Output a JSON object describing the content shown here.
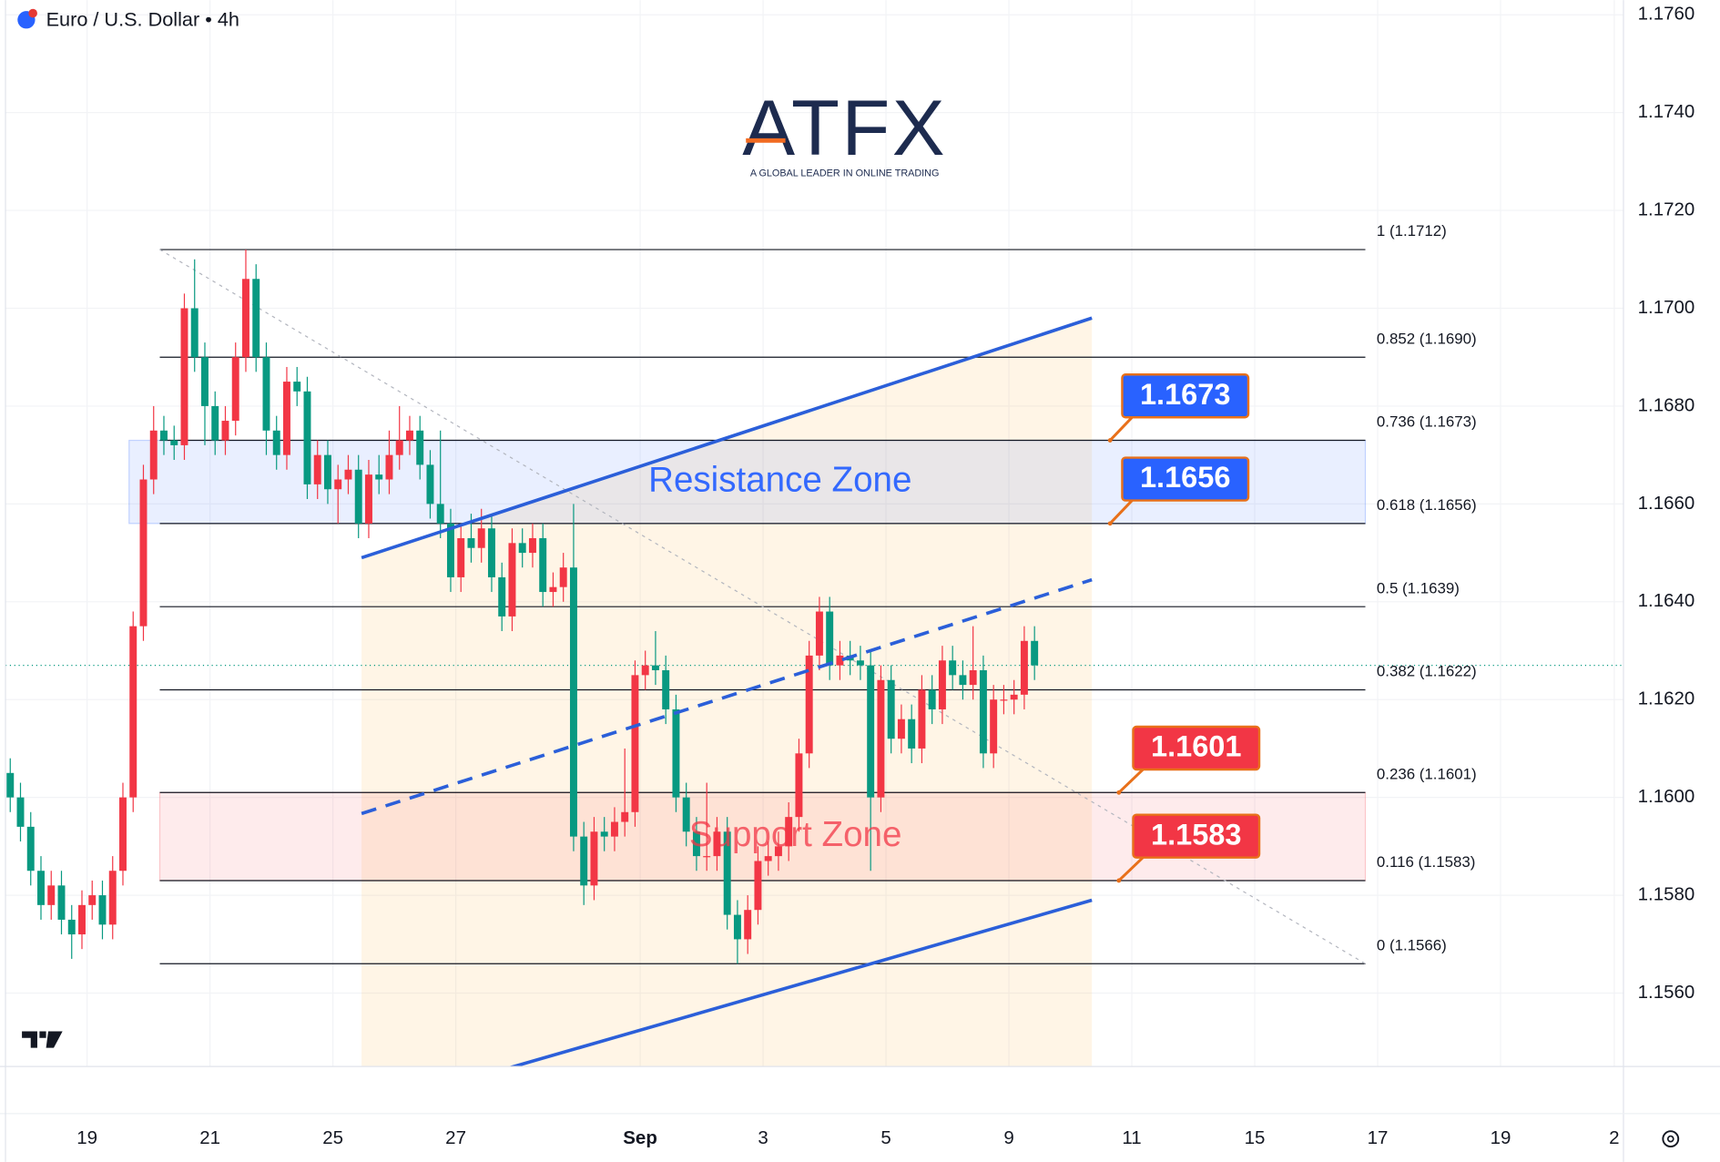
{
  "chart_data": {
    "type": "candlestick",
    "title": "Euro / U.S. Dollar • 4h",
    "up_color": "#f23645",
    "down_color": "#089981",
    "grid": true,
    "xlim": [
      -1,
      157.5
    ],
    "ylim": [
      1.1545,
      1.1763
    ],
    "xticks": [
      {
        "value": 7.5,
        "label": "19"
      },
      {
        "value": 19.5,
        "label": "21"
      },
      {
        "value": 31.5,
        "label": "25"
      },
      {
        "value": 43.5,
        "label": "27"
      },
      {
        "value": 61.5,
        "label": "Sep"
      },
      {
        "value": 73.5,
        "label": "3"
      },
      {
        "value": 85.5,
        "label": "5"
      },
      {
        "value": 97.5,
        "label": "9"
      },
      {
        "value": 109.5,
        "label": "11"
      },
      {
        "value": 121.5,
        "label": "15"
      },
      {
        "value": 133.5,
        "label": "17"
      },
      {
        "value": 145.5,
        "label": "19"
      },
      {
        "value": 156.6,
        "label": "2"
      }
    ],
    "yticks": [
      {
        "value": 1.176,
        "label": "1.1760"
      },
      {
        "value": 1.174,
        "label": "1.1740"
      },
      {
        "value": 1.172,
        "label": "1.1720"
      },
      {
        "value": 1.17,
        "label": "1.1700"
      },
      {
        "value": 1.168,
        "label": "1.1680"
      },
      {
        "value": 1.166,
        "label": "1.1660"
      },
      {
        "value": 1.164,
        "label": "1.1640"
      },
      {
        "value": 1.162,
        "label": "1.1620"
      },
      {
        "value": 1.16,
        "label": "1.1600"
      },
      {
        "value": 1.158,
        "label": "1.1580"
      },
      {
        "value": 1.156,
        "label": "1.1560"
      }
    ],
    "open": [
      1.1605,
      1.16,
      1.1594,
      1.1585,
      1.1578,
      1.1582,
      1.1575,
      1.1572,
      1.1578,
      1.158,
      1.1574,
      1.1585,
      1.16,
      1.1635,
      1.1665,
      1.1675,
      1.1673,
      1.1672,
      1.17,
      1.169,
      1.168,
      1.1673,
      1.1677,
      1.169,
      1.1706,
      1.169,
      1.1675,
      1.167,
      1.1685,
      1.1683,
      1.1664,
      1.167,
      1.1663,
      1.1665,
      1.1667,
      1.1656,
      1.1666,
      1.1665,
      1.167,
      1.1673,
      1.1675,
      1.1668,
      1.166,
      1.1656,
      1.1645,
      1.1653,
      1.1651,
      1.1655,
      1.1645,
      1.1637,
      1.1652,
      1.165,
      1.1653,
      1.1642,
      1.1643,
      1.1647,
      1.1592,
      1.1582,
      1.1593,
      1.1592,
      1.1595,
      1.1597,
      1.1625,
      1.1627,
      1.1626,
      1.1618,
      1.16,
      1.1593,
      1.1588,
      1.1588,
      1.1593,
      1.1576,
      1.1571,
      1.1577,
      1.1587,
      1.1588,
      1.159,
      1.1596,
      1.1609,
      1.1629,
      1.1638,
      1.1627,
      1.1629,
      1.1628,
      1.1627,
      1.16,
      1.1624,
      1.1612,
      1.1616,
      1.161,
      1.1622,
      1.1618,
      1.1628,
      1.1625,
      1.1623,
      1.1626,
      1.1609,
      1.162,
      1.162,
      1.1621,
      1.1632
    ],
    "high": [
      1.1608,
      1.1603,
      1.1597,
      1.1588,
      1.1585,
      1.1585,
      1.1578,
      1.1581,
      1.1583,
      1.1583,
      1.1588,
      1.1603,
      1.1638,
      1.1668,
      1.168,
      1.1678,
      1.1676,
      1.1703,
      1.171,
      1.1693,
      1.1683,
      1.168,
      1.1693,
      1.1712,
      1.1709,
      1.1693,
      1.1678,
      1.1688,
      1.1688,
      1.1686,
      1.1673,
      1.1673,
      1.1668,
      1.167,
      1.167,
      1.1669,
      1.167,
      1.1675,
      1.168,
      1.1678,
      1.1678,
      1.1671,
      1.1675,
      1.1659,
      1.1656,
      1.1658,
      1.1659,
      1.1658,
      1.1648,
      1.1655,
      1.1655,
      1.1656,
      1.1656,
      1.1646,
      1.165,
      1.166,
      1.1595,
      1.1596,
      1.1596,
      1.1598,
      1.161,
      1.1628,
      1.163,
      1.1634,
      1.1629,
      1.1621,
      1.1603,
      1.1596,
      1.1603,
      1.1596,
      1.1596,
      1.1579,
      1.158,
      1.159,
      1.1591,
      1.1593,
      1.1599,
      1.1612,
      1.1632,
      1.1641,
      1.1641,
      1.1632,
      1.1632,
      1.1631,
      1.163,
      1.1627,
      1.1627,
      1.1619,
      1.1619,
      1.1625,
      1.1625,
      1.1631,
      1.1631,
      1.1628,
      1.1635,
      1.1629,
      1.1623,
      1.1623,
      1.1624,
      1.1635,
      1.1635
    ],
    "low": [
      1.1597,
      1.1591,
      1.1582,
      1.1575,
      1.1575,
      1.1572,
      1.1567,
      1.1569,
      1.1575,
      1.1571,
      1.1571,
      1.1582,
      1.1597,
      1.1632,
      1.1662,
      1.167,
      1.1669,
      1.1669,
      1.1687,
      1.1672,
      1.167,
      1.167,
      1.1674,
      1.1687,
      1.1687,
      1.167,
      1.1667,
      1.1667,
      1.168,
      1.1661,
      1.1661,
      1.166,
      1.1656,
      1.1662,
      1.1653,
      1.1653,
      1.1662,
      1.1662,
      1.1667,
      1.167,
      1.1665,
      1.1657,
      1.1653,
      1.1642,
      1.1642,
      1.1648,
      1.1648,
      1.1642,
      1.1634,
      1.1634,
      1.1647,
      1.1647,
      1.1639,
      1.1639,
      1.164,
      1.1589,
      1.1578,
      1.1579,
      1.1589,
      1.1589,
      1.1592,
      1.1594,
      1.1622,
      1.1623,
      1.1615,
      1.1597,
      1.159,
      1.1585,
      1.1585,
      1.1585,
      1.1573,
      1.1566,
      1.1568,
      1.1574,
      1.1584,
      1.1585,
      1.1587,
      1.1593,
      1.1606,
      1.1626,
      1.1624,
      1.1624,
      1.1625,
      1.1624,
      1.1585,
      1.1597,
      1.1609,
      1.1609,
      1.1607,
      1.1607,
      1.1615,
      1.1615,
      1.1622,
      1.162,
      1.162,
      1.1606,
      1.1606,
      1.1617,
      1.1617,
      1.1618,
      1.1624
    ],
    "close": [
      1.16,
      1.1594,
      1.1585,
      1.1578,
      1.1582,
      1.1575,
      1.1572,
      1.1578,
      1.158,
      1.1574,
      1.1585,
      1.16,
      1.1635,
      1.1665,
      1.1675,
      1.1673,
      1.1672,
      1.17,
      1.169,
      1.168,
      1.1673,
      1.1677,
      1.169,
      1.1706,
      1.169,
      1.1675,
      1.167,
      1.1685,
      1.1683,
      1.1664,
      1.167,
      1.1663,
      1.1665,
      1.1667,
      1.1656,
      1.1666,
      1.1665,
      1.167,
      1.1673,
      1.1675,
      1.1668,
      1.166,
      1.1656,
      1.1645,
      1.1653,
      1.1651,
      1.1655,
      1.1645,
      1.1637,
      1.1652,
      1.165,
      1.1653,
      1.1642,
      1.1643,
      1.1647,
      1.1592,
      1.1582,
      1.1593,
      1.1592,
      1.1595,
      1.1597,
      1.1625,
      1.1627,
      1.1626,
      1.1618,
      1.16,
      1.1593,
      1.1588,
      1.1588,
      1.1593,
      1.1576,
      1.1571,
      1.1577,
      1.1587,
      1.1588,
      1.159,
      1.1596,
      1.1609,
      1.1629,
      1.1638,
      1.1627,
      1.1629,
      1.1628,
      1.1627,
      1.16,
      1.1624,
      1.1612,
      1.1616,
      1.161,
      1.1622,
      1.1618,
      1.1628,
      1.1625,
      1.1623,
      1.1626,
      1.1609,
      1.162,
      1.162,
      1.1621,
      1.1632,
      1.1627
    ],
    "last_price": 1.1627,
    "fib_range": [
      14.6,
      132.3
    ],
    "fib_levels": [
      {
        "label": "1 (1.1712)",
        "value": 1.1712
      },
      {
        "label": "0.852 (1.1690)",
        "value": 1.169
      },
      {
        "label": "0.736 (1.1673)",
        "value": 1.1673
      },
      {
        "label": "0.618 (1.1656)",
        "value": 1.1656
      },
      {
        "label": "0.5 (1.1639)",
        "value": 1.1639
      },
      {
        "label": "0.382 (1.1622)",
        "value": 1.1622
      },
      {
        "label": "0.236 (1.1601)",
        "value": 1.1601
      },
      {
        "label": "0.116 (1.1583)",
        "value": 1.1583
      },
      {
        "label": "0 (1.1566)",
        "value": 1.1566
      }
    ],
    "zones": [
      {
        "label": "Resistance Zone",
        "from": 1.1656,
        "to": 1.1673,
        "start": 11.6,
        "end": 132.3,
        "color": "#2962ff"
      },
      {
        "label": "Support Zone",
        "from": 1.1583,
        "to": 1.1601,
        "start": 14.6,
        "end": 132.3,
        "color": "#f23645"
      }
    ],
    "trend_lines": [
      {
        "x": [
          34.3,
          105.6
        ],
        "y": [
          1.1649,
          1.1698
        ],
        "color": "#2b5fd9",
        "dashed": false
      },
      {
        "x": [
          38.4,
          105.6
        ],
        "y": [
          1.15385,
          1.1579
        ],
        "color": "#2b5fd9",
        "dashed": false
      },
      {
        "x": [
          34.3,
          105.6
        ],
        "y": [
          1.15967,
          1.16445
        ],
        "color": "#2b5fd9",
        "dashed": true
      }
    ],
    "diagonal": {
      "x": [
        14.6,
        132.3
      ],
      "y": [
        1.1712,
        1.1566
      ]
    },
    "price_labels": [
      {
        "value": 1.1673,
        "color": "#2962ff"
      },
      {
        "value": 1.1656,
        "color": "#2962ff"
      },
      {
        "value": 1.1601,
        "color": "#f23645"
      },
      {
        "value": 1.1583,
        "color": "#f23645"
      }
    ]
  },
  "logo": {
    "name": "ATFX",
    "tagline": "A GLOBAL LEADER IN ONLINE TRADING"
  }
}
